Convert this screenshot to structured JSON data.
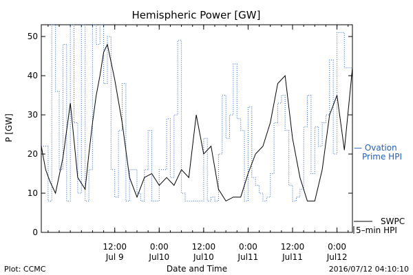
{
  "chart_data": {
    "type": "line",
    "title": "Hemispheric Power [GW]",
    "xlabel": "Date and Time",
    "ylabel": "P [GW]",
    "ylim": [
      0,
      53
    ],
    "yticks": [
      0,
      10,
      20,
      30,
      40,
      50
    ],
    "xlim": [
      "2016-07-08 16:10",
      "2016-07-12 04:10"
    ],
    "xticks": [
      {
        "at": "2016-07-09 12:00",
        "line1": "12:00",
        "line2": "Jul 9"
      },
      {
        "at": "2016-07-10 00:00",
        "line1": "0:00",
        "line2": "Jul10"
      },
      {
        "at": "2016-07-10 12:00",
        "line1": "12:00",
        "line2": "Jul10"
      },
      {
        "at": "2016-07-11 00:00",
        "line1": "0:00",
        "line2": "Jul11"
      },
      {
        "at": "2016-07-11 12:00",
        "line1": "12:00",
        "line2": "Jul11"
      },
      {
        "at": "2016-07-12 00:00",
        "line1": "0:00",
        "line2": "Jul12"
      }
    ],
    "grid": false,
    "legend_position": "right",
    "series": [
      {
        "name": "SWPC 5-min HPI",
        "legend_line1": "SWPC",
        "legend_line2": "5–min HPI",
        "color": "#000000",
        "style": "solid",
        "x": [
          "2016-07-08 16:10",
          "2016-07-08 17:20",
          "2016-07-08 18:30",
          "2016-07-08 20:00",
          "2016-07-08 22:00",
          "2016-07-09 00:00",
          "2016-07-09 02:00",
          "2016-07-09 04:00",
          "2016-07-09 05:00",
          "2016-07-09 06:00",
          "2016-07-09 07:00",
          "2016-07-09 08:00",
          "2016-07-09 09:00",
          "2016-07-09 10:00",
          "2016-07-09 12:00",
          "2016-07-09 14:00",
          "2016-07-09 16:00",
          "2016-07-09 18:00",
          "2016-07-09 20:00",
          "2016-07-09 22:00",
          "2016-07-10 00:00",
          "2016-07-10 02:00",
          "2016-07-10 04:00",
          "2016-07-10 06:00",
          "2016-07-10 08:00",
          "2016-07-10 10:00",
          "2016-07-10 12:00",
          "2016-07-10 14:00",
          "2016-07-10 16:00",
          "2016-07-10 18:00",
          "2016-07-10 20:00",
          "2016-07-10 22:00",
          "2016-07-11 00:00",
          "2016-07-11 02:00",
          "2016-07-11 04:00",
          "2016-07-11 06:00",
          "2016-07-11 08:00",
          "2016-07-11 10:00",
          "2016-07-11 12:00",
          "2016-07-11 14:00",
          "2016-07-11 16:00",
          "2016-07-11 18:00",
          "2016-07-11 20:00",
          "2016-07-11 22:00",
          "2016-07-12 00:00",
          "2016-07-12 02:00",
          "2016-07-12 04:10"
        ],
        "y": [
          22,
          16,
          13,
          10,
          19,
          33,
          14,
          11,
          20,
          28,
          35,
          40,
          46,
          48,
          39,
          28,
          14,
          9,
          14,
          15,
          12,
          14,
          12,
          16,
          14,
          30,
          20,
          22,
          11,
          8,
          9,
          9,
          15,
          20,
          22,
          28,
          38,
          40,
          24,
          14,
          8,
          8,
          16,
          30,
          35,
          21,
          42
        ]
      },
      {
        "name": "Ovation Prime HPI",
        "legend_line1": "— Ovation",
        "legend_line2": "Prime HPI",
        "color": "#1f5fbf",
        "style": "dotted",
        "x": [
          "2016-07-08 16:10",
          "2016-07-08 18:00",
          "2016-07-08 19:00",
          "2016-07-08 20:00",
          "2016-07-08 21:00",
          "2016-07-08 22:00",
          "2016-07-08 23:00",
          "2016-07-09 00:00",
          "2016-07-09 01:00",
          "2016-07-09 02:00",
          "2016-07-09 03:00",
          "2016-07-09 04:00",
          "2016-07-09 05:00",
          "2016-07-09 06:00",
          "2016-07-09 07:00",
          "2016-07-09 08:00",
          "2016-07-09 09:00",
          "2016-07-09 10:00",
          "2016-07-09 11:00",
          "2016-07-09 12:00",
          "2016-07-09 13:00",
          "2016-07-09 14:00",
          "2016-07-09 15:00",
          "2016-07-09 16:00",
          "2016-07-09 17:00",
          "2016-07-09 18:00",
          "2016-07-09 19:00",
          "2016-07-09 20:00",
          "2016-07-09 21:00",
          "2016-07-09 22:00",
          "2016-07-09 23:00",
          "2016-07-10 00:00",
          "2016-07-10 01:00",
          "2016-07-10 02:00",
          "2016-07-10 03:00",
          "2016-07-10 04:00",
          "2016-07-10 05:00",
          "2016-07-10 06:00",
          "2016-07-10 07:00",
          "2016-07-10 08:00",
          "2016-07-10 09:00",
          "2016-07-10 10:00",
          "2016-07-10 11:00",
          "2016-07-10 12:00",
          "2016-07-10 13:00",
          "2016-07-10 14:00",
          "2016-07-10 15:00",
          "2016-07-10 16:00",
          "2016-07-10 17:00",
          "2016-07-10 18:00",
          "2016-07-10 19:00",
          "2016-07-10 20:00",
          "2016-07-10 21:00",
          "2016-07-10 22:00",
          "2016-07-10 23:00",
          "2016-07-11 00:00",
          "2016-07-11 01:00",
          "2016-07-11 02:00",
          "2016-07-11 03:00",
          "2016-07-11 04:00",
          "2016-07-11 05:00",
          "2016-07-11 06:00",
          "2016-07-11 07:00",
          "2016-07-11 08:00",
          "2016-07-11 09:00",
          "2016-07-11 10:00",
          "2016-07-11 11:00",
          "2016-07-11 12:00",
          "2016-07-11 13:00",
          "2016-07-11 14:00",
          "2016-07-11 15:00",
          "2016-07-11 16:00",
          "2016-07-11 17:00",
          "2016-07-11 18:00",
          "2016-07-11 19:00",
          "2016-07-11 20:00",
          "2016-07-11 21:00",
          "2016-07-11 22:00",
          "2016-07-11 23:00",
          "2016-07-12 00:00",
          "2016-07-12 01:00",
          "2016-07-12 02:00",
          "2016-07-12 03:00",
          "2016-07-12 04:10"
        ],
        "y": [
          22,
          8,
          53,
          36,
          16,
          48,
          8,
          53,
          28,
          10,
          53,
          8,
          16,
          53,
          48,
          53,
          38,
          50,
          16,
          9,
          26,
          38,
          8,
          16,
          16,
          10,
          8,
          16,
          26,
          8,
          8,
          16,
          16,
          29,
          14,
          30,
          49,
          10,
          8,
          8,
          8,
          8,
          8,
          24,
          8,
          9,
          8,
          20,
          35,
          24,
          30,
          43,
          29,
          26,
          8,
          32,
          14,
          12,
          10,
          8,
          9,
          15,
          28,
          33,
          35,
          26,
          12,
          8,
          9,
          11,
          27,
          35,
          15,
          27,
          22,
          28,
          30,
          44,
          20,
          51,
          51,
          42,
          42,
          42
        ]
      }
    ]
  },
  "footer": {
    "plot_credit": "Plot: CCMC",
    "timestamp": "2016/07/12 04:10:10"
  },
  "colors": {
    "axis": "#000000",
    "hpi_line": "#000000",
    "ovation_line": "#1f5fbf"
  }
}
